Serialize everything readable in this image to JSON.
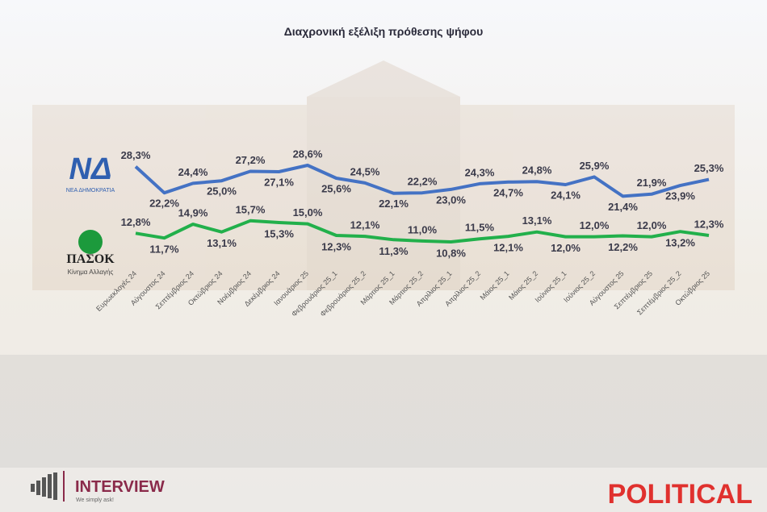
{
  "chart_data": {
    "type": "line",
    "title": "Διαχρονική εξέλιξη πρόθεσης ψήφου",
    "categories": [
      "Ευρωεκλογές 24",
      "Αύγουστος 24",
      "Σεπτέμβριος 24",
      "Οκτώβριος 24",
      "Νοέμβριος 24",
      "Δεκέμβριος 24",
      "Ιανουάριος 25",
      "Φεβρουάριος 25_1",
      "Φεβρουάριος 25_2",
      "Μάρτιος 25_1",
      "Μάρτιος 25_2",
      "Απρίλιος 25_1",
      "Απρίλιος 25_2",
      "Μάιος 25_1",
      "Μάιος 25_2",
      "Ιούνιος 25_1",
      "Ιούνιος 25_2",
      "Αύγουστος 25",
      "Σεπτέμβριος 25",
      "Σεπτέμβριος 25_2",
      "Οκτώβριος 25"
    ],
    "series": [
      {
        "color": "#4472c4",
        "values": [
          28.3,
          22.2,
          24.4,
          25.0,
          27.2,
          27.1,
          28.6,
          25.6,
          24.5,
          22.1,
          22.2,
          23.0,
          24.3,
          24.7,
          24.8,
          24.1,
          25.9,
          21.4,
          21.9,
          23.9,
          25.3
        ],
        "value_labels": [
          "28,3%",
          "22,2%",
          "24,4%",
          "25,0%",
          "27,2%",
          "27,1%",
          "28,6%",
          "25,6%",
          "24,5%",
          "22,1%",
          "22,2%",
          "23,0%",
          "24,3%",
          "24,7%",
          "24,8%",
          "24,1%",
          "25,9%",
          "21,4%",
          "21,9%",
          "23,9%",
          "25,3%"
        ]
      },
      {
        "color": "#22b04b",
        "values": [
          12.8,
          11.7,
          14.9,
          13.1,
          15.7,
          15.3,
          15.0,
          12.3,
          12.1,
          11.3,
          11.0,
          10.8,
          11.5,
          12.1,
          13.1,
          12.0,
          12.0,
          12.2,
          12.0,
          13.2,
          12.3
        ],
        "value_labels": [
          "12,8%",
          "11,7%",
          "14,9%",
          "13,1%",
          "15,7%",
          "15,3%",
          "15,0%",
          "12,3%",
          "12,1%",
          "11,3%",
          "11,0%",
          "10,8%",
          "11,5%",
          "12,1%",
          "13,1%",
          "12,0%",
          "12,0%",
          "12,2%",
          "12,0%",
          "13,2%",
          "12,3%"
        ]
      }
    ]
  },
  "logos": {
    "nd": "ΝΔ",
    "nd_name": "ΝΕΑ ΔΗΜΟΚΡΑΤΙΑ",
    "pasok": "ΠΑΣΟΚ",
    "pasok_name": "Κίνημα Αλλαγής",
    "interview": "INTERVIEW",
    "interview_tag": "We simply ask!",
    "political": "POLITICAL"
  }
}
